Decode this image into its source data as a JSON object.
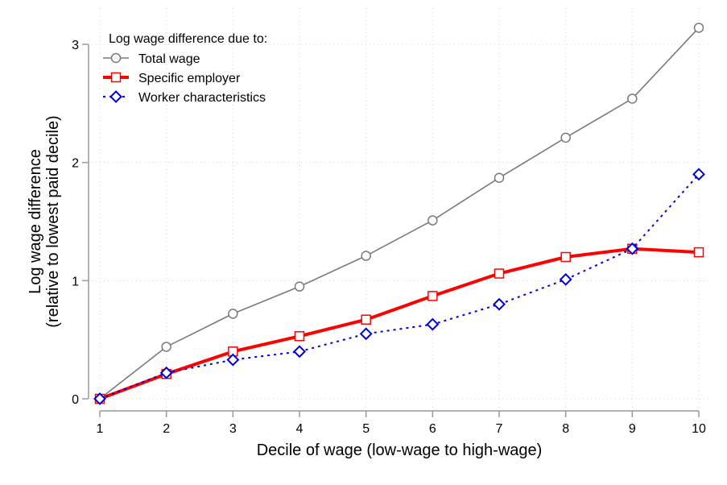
{
  "chart_data": {
    "type": "line",
    "title": "",
    "xlabel": "Decile of wage (low-wage to high-wage)",
    "ylabel": [
      "Log wage difference",
      "(relative to lowest paid decile)"
    ],
    "x": [
      1,
      2,
      3,
      4,
      5,
      6,
      7,
      8,
      9,
      10
    ],
    "xticks": [
      "1",
      "2",
      "3",
      "4",
      "5",
      "6",
      "7",
      "8",
      "9",
      "10"
    ],
    "yticks": [
      "0",
      "1",
      "2",
      "3"
    ],
    "xlim": [
      1,
      10
    ],
    "ylim": [
      0,
      3
    ],
    "grid": true,
    "legend": {
      "title": "Log wage difference due to:",
      "position": "upper-left-inside"
    },
    "series": [
      {
        "name": "Total wage",
        "color": "#7a7a7a",
        "marker": "circle",
        "line_style": "solid",
        "values": [
          0,
          0.44,
          0.72,
          0.95,
          1.21,
          1.51,
          1.87,
          2.21,
          2.54,
          3.14
        ]
      },
      {
        "name": "Specific employer",
        "color": "#ff0000",
        "marker": "square",
        "line_style": "solid-thick",
        "values": [
          0,
          0.21,
          0.4,
          0.53,
          0.67,
          0.87,
          1.06,
          1.2,
          1.27,
          1.24
        ]
      },
      {
        "name": "Worker characteristics",
        "color": "#0000dd",
        "marker": "diamond",
        "line_style": "dotted",
        "values": [
          0,
          0.22,
          0.33,
          0.4,
          0.55,
          0.63,
          0.8,
          1.01,
          1.27,
          1.9
        ]
      }
    ]
  }
}
